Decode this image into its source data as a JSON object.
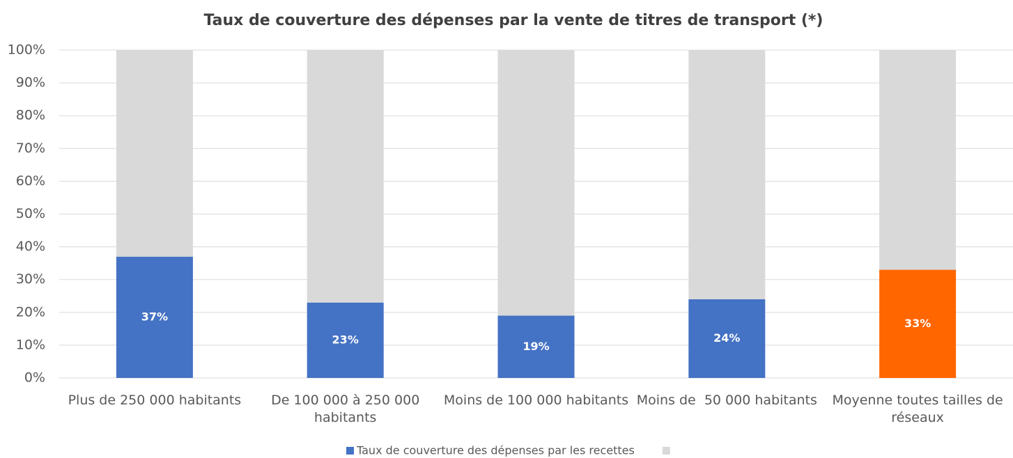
{
  "chart_data": {
    "type": "stacked_bar",
    "title": "Taux de couverture des dépenses par la vente de titres de transport (*)",
    "categories": [
      "Plus de 250 000 habitants",
      "De 100 000 à 250 000 habitants",
      "Moins de 100 000 habitants",
      "Moins de  50 000 habitants",
      "Moyenne toutes tailles de réseaux"
    ],
    "series": [
      {
        "name": "Taux de couverture des dépenses par les recettes",
        "color": "#4472c4",
        "colors": [
          "#4472c4",
          "#4472c4",
          "#4472c4",
          "#4472c4",
          "#ff6600"
        ],
        "values": [
          37,
          23,
          19,
          24,
          33
        ],
        "value_labels": [
          "37%",
          "23%",
          "19%",
          "24%",
          "33%"
        ]
      },
      {
        "color": "#d9d9d9",
        "values": [
          63,
          77,
          81,
          76,
          67
        ]
      }
    ],
    "ylim": [
      0,
      100
    ],
    "yticks": [
      {
        "value": 0,
        "label": "0%"
      },
      {
        "value": 10,
        "label": "10%"
      },
      {
        "value": 20,
        "label": "20%"
      },
      {
        "value": 30,
        "label": "30%"
      },
      {
        "value": 40,
        "label": "40%"
      },
      {
        "value": 50,
        "label": "50%"
      },
      {
        "value": 60,
        "label": "60%"
      },
      {
        "value": 70,
        "label": "70%"
      },
      {
        "value": 80,
        "label": "80%"
      },
      {
        "value": 90,
        "label": "90%"
      },
      {
        "value": 100,
        "label": "100%"
      }
    ],
    "grid": true,
    "legend": "bottom"
  }
}
